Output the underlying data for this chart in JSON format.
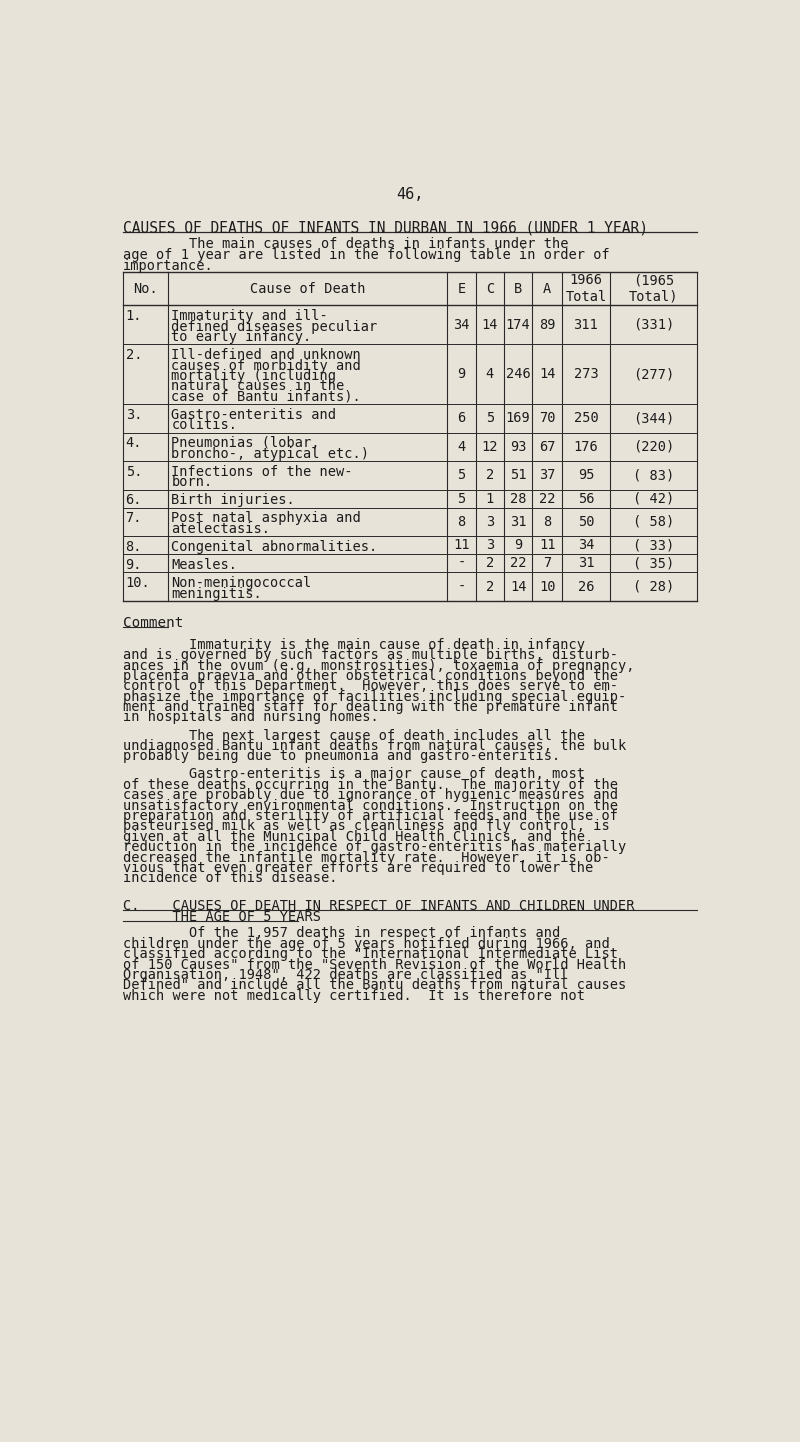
{
  "page_number": "46,",
  "bg_color": "#e8e3d8",
  "title": "CAUSES OF DEATHS OF INFANTS IN DURBAN IN 1966 (UNDER 1 YEAR)",
  "intro_line1": "        The main causes of deaths in infants under the",
  "intro_line2": "age of 1 year are listed in the following table in order of",
  "intro_line3": "importance.",
  "table_rows": [
    {
      "no": "1.",
      "cause_lines": [
        "Immaturity and ill-",
        "defined diseases peculiar",
        "to early infancy."
      ],
      "E": "34",
      "C": "14",
      "B": "174",
      "A": "89",
      "total_1966": "311",
      "total_1965": "(331)"
    },
    {
      "no": "2.",
      "cause_lines": [
        "Ill-defined and unknown",
        "causes of morbidity and",
        "mortality (including",
        "natural causes in the",
        "case of Bantu infants)."
      ],
      "E": "9",
      "C": "4",
      "B": "246",
      "A": "14",
      "total_1966": "273",
      "total_1965": "(277)"
    },
    {
      "no": "3.",
      "cause_lines": [
        "Gastro-enteritis and",
        "colitis."
      ],
      "E": "6",
      "C": "5",
      "B": "169",
      "A": "70",
      "total_1966": "250",
      "total_1965": "(344)"
    },
    {
      "no": "4.",
      "cause_lines": [
        "Pneumonias (lobar,",
        "broncho-, atypical etc.)"
      ],
      "E": "4",
      "C": "12",
      "B": "93",
      "A": "67",
      "total_1966": "176",
      "total_1965": "(220)"
    },
    {
      "no": "5.",
      "cause_lines": [
        "Infections of the new-",
        "born."
      ],
      "E": "5",
      "C": "2",
      "B": "51",
      "A": "37",
      "total_1966": "95",
      "total_1965": "( 83)"
    },
    {
      "no": "6.",
      "cause_lines": [
        "Birth injuries."
      ],
      "E": "5",
      "C": "1",
      "B": "28",
      "A": "22",
      "total_1966": "56",
      "total_1965": "( 42)"
    },
    {
      "no": "7.",
      "cause_lines": [
        "Post natal asphyxia and",
        "atelectasis."
      ],
      "E": "8",
      "C": "3",
      "B": "31",
      "A": "8",
      "total_1966": "50",
      "total_1965": "( 58)"
    },
    {
      "no": "8.",
      "cause_lines": [
        "Congenital abnormalities."
      ],
      "E": "11",
      "C": "3",
      "B": "9",
      "A": "11",
      "total_1966": "34",
      "total_1965": "( 33)"
    },
    {
      "no": "9.",
      "cause_lines": [
        "Measles."
      ],
      "E": "-",
      "C": "2",
      "B": "22",
      "A": "7",
      "total_1966": "31",
      "total_1965": "( 35)"
    },
    {
      "no": "10.",
      "cause_lines": [
        "Non-meningococcal",
        "meningitis."
      ],
      "E": "-",
      "C": "2",
      "B": "14",
      "A": "10",
      "total_1966": "26",
      "total_1965": "( 28)"
    }
  ],
  "comment_heading": "Comment",
  "comment_para1_lines": [
    "        Immaturity is the main cause of death in infancy",
    "and is governed by such factors as multiple births, disturb-",
    "ances in the ovum (e.g. monstrosities), toxaemia of pregnancy,",
    "placenta praevia and other obstetrical conditions beyond the",
    "control of this Department.  However, this does serve to em-",
    "phasize the importance of facilities including special equip-",
    "ment and trained staff for dealing with the premature infant",
    "in hospitals and nursing homes."
  ],
  "comment_para2_lines": [
    "        The next largest cause of death includes all the",
    "undiagnosed Bantu infant deaths from natural causes, the bulk",
    "probably being due to pneumonia and gastro-enteritis."
  ],
  "comment_para3_lines": [
    "        Gastro-enteritis is a major cause of death, most",
    "of these deaths occurring in the Bantu.  The majority of the",
    "cases are probably due to ignorance of hygienic measures and",
    "unsatisfactory environmental conditions.  Instruction on the",
    "preparation and sterility of artificial feeds and the use of",
    "pasteurised milk as well as cleanliness and fly control, is",
    "given at all the Municipal Child Health Clinics, and the",
    "reduction in the incidence of gastro-enteritis has materially",
    "decreased the infantile mortality rate.  However, it is ob-",
    "vious that even greater efforts are required to lower the",
    "incidence of this disease."
  ],
  "section_c_line1": "C.    CAUSES OF DEATH IN RESPECT OF INFANTS AND CHILDREN UNDER",
  "section_c_line2": "      THE AGE OF 5 YEARS",
  "section_c_para_lines": [
    "        Of the 1,957 deaths in respect of infants and",
    "children under the age of 5 years notified during 1966, and",
    "classified according to the \"International Intermediate List",
    "of 150 Causes\" from the \"Seventh Revision of the World Health",
    "Organisation, 1948\", 422 deaths are classified as \"Ill",
    "Defined\" and include all the Bantu deaths from natural causes",
    "which were not medically certified.  It is therefore not"
  ],
  "text_color": "#1c1c1c",
  "table_border_color": "#2a2a2a",
  "font_size_body": 9.8,
  "font_size_title": 10.5,
  "font_size_page_num": 11
}
